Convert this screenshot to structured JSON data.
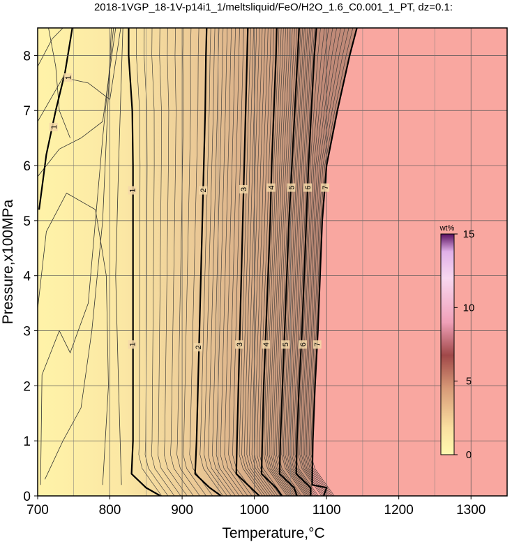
{
  "chart_data": {
    "type": "heatmap",
    "title": "2018-1VGP_18-1V-p14i1_1/meltsliquid/FeO/H2O_1.6_C0.001_1_PT, dz=0.1:",
    "xlabel": "Temperature,°C",
    "ylabel": "Pressure,x100MPa",
    "xlim": [
      700,
      1350
    ],
    "ylim": [
      0,
      8.5
    ],
    "x_ticks": [
      700,
      800,
      900,
      1000,
      1100,
      1200,
      1300
    ],
    "y_ticks": [
      0,
      1,
      2,
      3,
      4,
      5,
      6,
      7,
      8
    ],
    "grid": true,
    "colorbar": {
      "label": "wt%",
      "range": [
        0,
        15
      ],
      "ticks": [
        0,
        5,
        10,
        15
      ],
      "placement": "right-inside"
    },
    "liquidus_region_color": "#f9a7a0",
    "contours": [
      {
        "level": 1,
        "points": [
          [
            830,
            0.4
          ],
          [
            832,
            1.0
          ],
          [
            832,
            2.0
          ],
          [
            832,
            3.0
          ],
          [
            832,
            4.0
          ],
          [
            832,
            5.0
          ],
          [
            832,
            6.0
          ],
          [
            831,
            7.0
          ],
          [
            826,
            8.0
          ],
          [
            826,
            8.5
          ]
        ]
      },
      {
        "level": 2,
        "points": [
          [
            918,
            0.4
          ],
          [
            920,
            1.0
          ],
          [
            922,
            2.0
          ],
          [
            924,
            3.0
          ],
          [
            926,
            4.0
          ],
          [
            928,
            5.0
          ],
          [
            930,
            6.0
          ],
          [
            932,
            7.0
          ],
          [
            933,
            8.0
          ],
          [
            934,
            8.5
          ]
        ]
      },
      {
        "level": 3,
        "points": [
          [
            975,
            0.4
          ],
          [
            976,
            1.0
          ],
          [
            978,
            2.0
          ],
          [
            980,
            3.0
          ],
          [
            982,
            4.0
          ],
          [
            984,
            5.0
          ],
          [
            986,
            6.0
          ],
          [
            988,
            7.0
          ],
          [
            990,
            8.0
          ],
          [
            991,
            8.5
          ]
        ]
      },
      {
        "level": 4,
        "points": [
          [
            1010,
            0.4
          ],
          [
            1011,
            1.0
          ],
          [
            1013,
            2.0
          ],
          [
            1016,
            3.0
          ],
          [
            1019,
            4.0
          ],
          [
            1022,
            5.0
          ],
          [
            1024,
            6.0
          ],
          [
            1027,
            7.0
          ],
          [
            1030,
            8.0
          ],
          [
            1031,
            8.5
          ]
        ]
      },
      {
        "level": 5,
        "points": [
          [
            1035,
            0.4
          ],
          [
            1036,
            1.0
          ],
          [
            1039,
            2.0
          ],
          [
            1042,
            3.0
          ],
          [
            1045,
            4.0
          ],
          [
            1048,
            5.0
          ],
          [
            1052,
            6.0
          ],
          [
            1056,
            7.0
          ],
          [
            1060,
            8.0
          ],
          [
            1062,
            8.5
          ]
        ]
      },
      {
        "level": 6,
        "points": [
          [
            1058,
            0.4
          ],
          [
            1059,
            1.0
          ],
          [
            1062,
            2.0
          ],
          [
            1066,
            3.0
          ],
          [
            1069,
            4.0
          ],
          [
            1072,
            5.0
          ],
          [
            1075,
            6.0
          ],
          [
            1079,
            7.0
          ],
          [
            1083,
            8.0
          ],
          [
            1086,
            8.5
          ]
        ]
      },
      {
        "level": 7,
        "points": [
          [
            1080,
            0.2
          ],
          [
            1081,
            1.0
          ],
          [
            1084,
            2.0
          ],
          [
            1088,
            3.0
          ],
          [
            1091,
            4.0
          ],
          [
            1094,
            5.0
          ],
          [
            1100,
            6.0
          ],
          [
            1115,
            7.0
          ],
          [
            1132,
            8.0
          ],
          [
            1142,
            8.5
          ]
        ]
      }
    ],
    "contour_label_positions": [
      {
        "text": "1",
        "points": [
          [
            831,
            5.55
          ],
          [
            831,
            2.75
          ]
        ]
      },
      {
        "text": "2",
        "points": [
          [
            929,
            5.55
          ],
          [
            922,
            2.7
          ]
        ]
      },
      {
        "text": "3",
        "points": [
          [
            985,
            5.57
          ],
          [
            979,
            2.75
          ]
        ]
      },
      {
        "text": "4",
        "points": [
          [
            1023,
            5.6
          ],
          [
            1016,
            2.75
          ]
        ]
      },
      {
        "text": "5",
        "points": [
          [
            1051,
            5.6
          ],
          [
            1043,
            2.75
          ]
        ]
      },
      {
        "text": "6",
        "points": [
          [
            1074,
            5.6
          ],
          [
            1067,
            2.75
          ]
        ]
      },
      {
        "text": "7",
        "points": [
          [
            1098,
            5.6
          ],
          [
            1087,
            2.75
          ]
        ]
      },
      {
        "text": "1",
        "points": [
          [
            742,
            7.6
          ],
          [
            722,
            6.7
          ]
        ]
      }
    ]
  }
}
